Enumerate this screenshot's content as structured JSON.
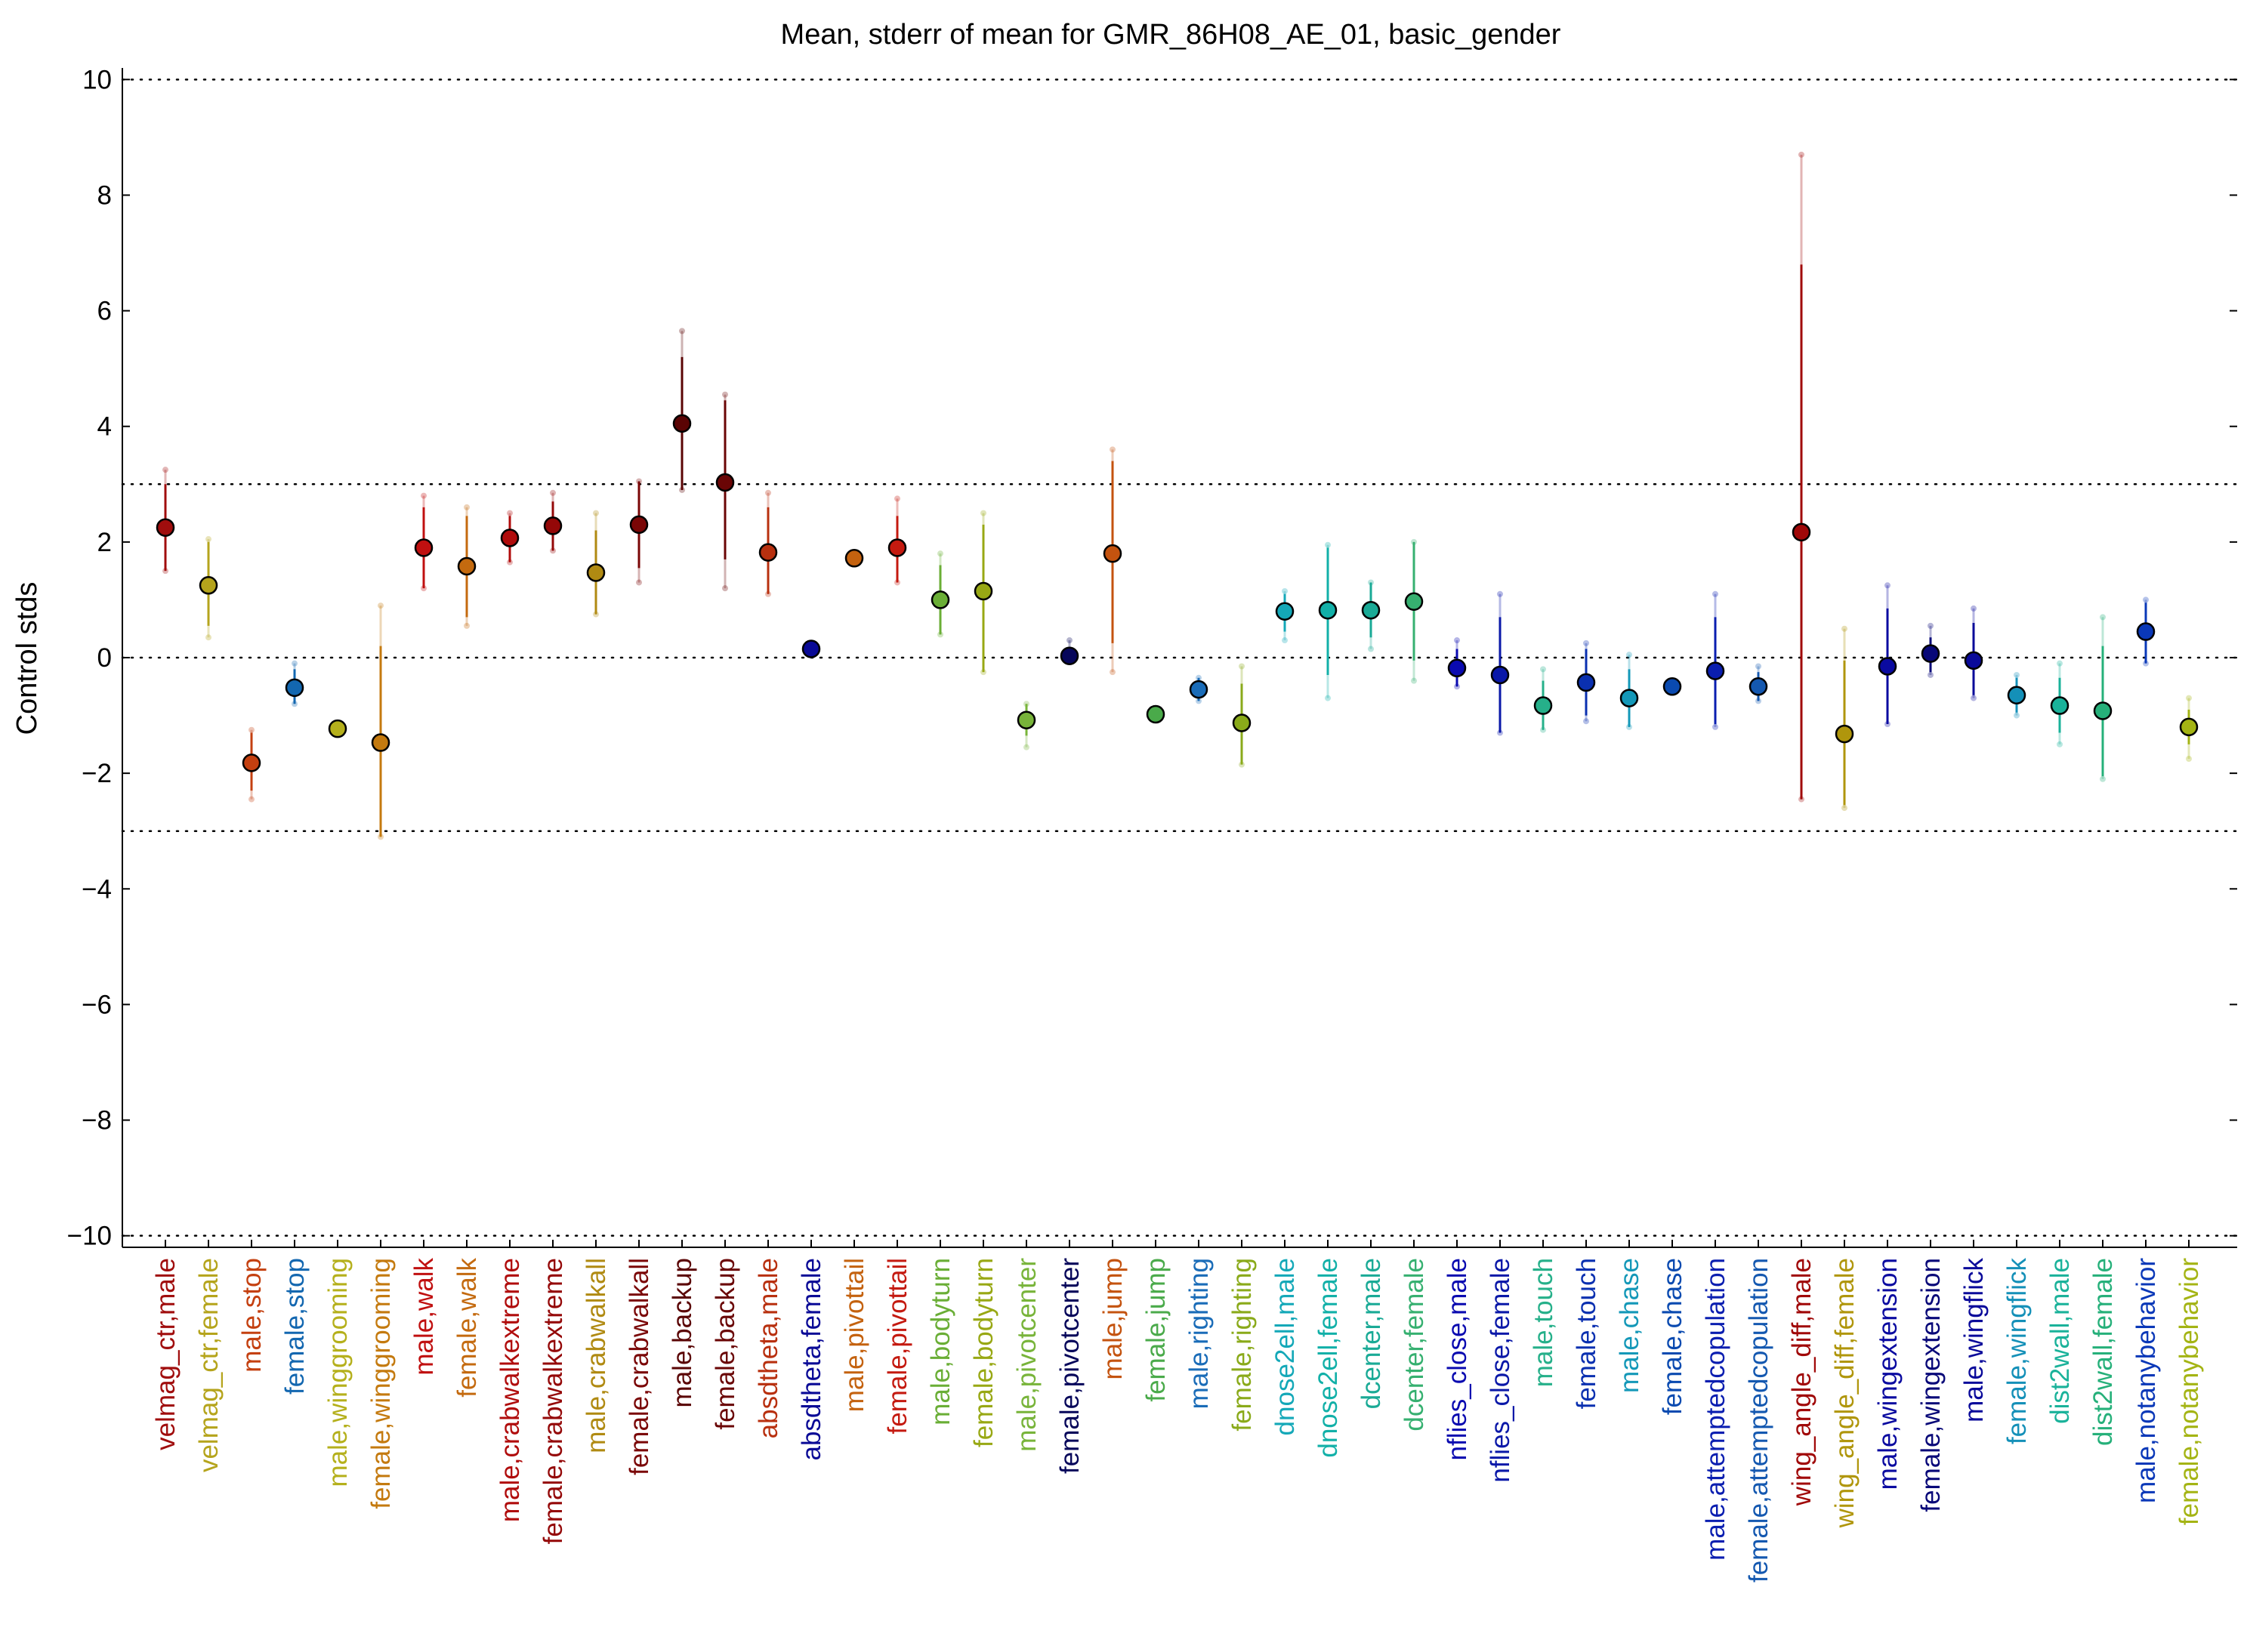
{
  "chart_data": {
    "type": "scatter",
    "title": "Mean, stderr of mean for GMR_86H08_AE_01, basic_gender",
    "ylabel": "Control stds",
    "xlabel": "",
    "ylim": [
      -10.2,
      10.2
    ],
    "yticks": [
      10,
      8,
      6,
      4,
      2,
      0,
      -2,
      -4,
      -6,
      -8,
      -10
    ],
    "reference_lines": [
      10,
      3,
      0,
      -3,
      -10
    ],
    "grid": false,
    "points": [
      {
        "label": "velmag_ctr,male",
        "mean": 2.25,
        "err_low": 1.5,
        "err_high": 3.0,
        "ext_low": 1.5,
        "ext_high": 3.25,
        "color": "#a00d0d"
      },
      {
        "label": "velmag_ctr,female",
        "mean": 1.25,
        "err_low": 0.55,
        "err_high": 2.0,
        "ext_low": 0.35,
        "ext_high": 2.05,
        "color": "#b5a41c"
      },
      {
        "label": "male,stop",
        "mean": -1.82,
        "err_low": -2.3,
        "err_high": -1.3,
        "ext_low": -2.45,
        "ext_high": -1.25,
        "color": "#c44010"
      },
      {
        "label": "female,stop",
        "mean": -0.52,
        "err_low": -0.8,
        "err_high": -0.2,
        "ext_low": -0.8,
        "ext_high": -0.1,
        "color": "#1367b0"
      },
      {
        "label": "male,winggrooming",
        "mean": -1.23,
        "err_low": -1.25,
        "err_high": -1.2,
        "ext_low": -1.25,
        "ext_high": -1.2,
        "color": "#b5b01c"
      },
      {
        "label": "female,winggrooming",
        "mean": -1.47,
        "err_low": -3.1,
        "err_high": 0.2,
        "ext_low": -3.1,
        "ext_high": 0.9,
        "color": "#c47a0f"
      },
      {
        "label": "male,walk",
        "mean": 1.9,
        "err_low": 1.2,
        "err_high": 2.6,
        "ext_low": 1.2,
        "ext_high": 2.8,
        "color": "#c01010"
      },
      {
        "label": "female,walk",
        "mean": 1.58,
        "err_low": 0.7,
        "err_high": 2.45,
        "ext_low": 0.55,
        "ext_high": 2.6,
        "color": "#c46a0f"
      },
      {
        "label": "male,crabwalkextreme",
        "mean": 2.07,
        "err_low": 1.65,
        "err_high": 2.45,
        "ext_low": 1.65,
        "ext_high": 2.5,
        "color": "#b00c0c"
      },
      {
        "label": "female,crabwalkextreme",
        "mean": 2.28,
        "err_low": 1.85,
        "err_high": 2.7,
        "ext_low": 1.85,
        "ext_high": 2.85,
        "color": "#940808"
      },
      {
        "label": "male,crabwalkall",
        "mean": 1.47,
        "err_low": 0.75,
        "err_high": 2.2,
        "ext_low": 0.75,
        "ext_high": 2.5,
        "color": "#b08a12"
      },
      {
        "label": "female,crabwalkall",
        "mean": 2.3,
        "err_low": 1.55,
        "err_high": 3.05,
        "ext_low": 1.3,
        "ext_high": 3.05,
        "color": "#7a0606"
      },
      {
        "label": "male,backup",
        "mean": 4.05,
        "err_low": 2.9,
        "err_high": 5.2,
        "ext_low": 2.9,
        "ext_high": 5.65,
        "color": "#5a0404"
      },
      {
        "label": "female,backup",
        "mean": 3.03,
        "err_low": 1.7,
        "err_high": 4.45,
        "ext_low": 1.2,
        "ext_high": 4.55,
        "color": "#6a0505"
      },
      {
        "label": "absdtheta,male",
        "mean": 1.82,
        "err_low": 1.1,
        "err_high": 2.6,
        "ext_low": 1.1,
        "ext_high": 2.85,
        "color": "#b8300f"
      },
      {
        "label": "absdtheta,female",
        "mean": 0.15,
        "err_low": 0.1,
        "err_high": 0.2,
        "ext_low": 0.1,
        "ext_high": 0.2,
        "color": "#0a0a96"
      },
      {
        "label": "male,pivottail",
        "mean": 1.72,
        "err_low": 1.7,
        "err_high": 1.75,
        "ext_low": 1.7,
        "ext_high": 1.75,
        "color": "#c4620f"
      },
      {
        "label": "female,pivottail",
        "mean": 1.9,
        "err_low": 1.3,
        "err_high": 2.45,
        "ext_low": 1.3,
        "ext_high": 2.75,
        "color": "#c41a10"
      },
      {
        "label": "male,bodyturn",
        "mean": 1.0,
        "err_low": 0.4,
        "err_high": 1.6,
        "ext_low": 0.4,
        "ext_high": 1.8,
        "color": "#6aae36"
      },
      {
        "label": "female,bodyturn",
        "mean": 1.15,
        "err_low": -0.25,
        "err_high": 2.3,
        "ext_low": -0.25,
        "ext_high": 2.5,
        "color": "#98a814"
      },
      {
        "label": "male,pivotcenter",
        "mean": -1.08,
        "err_low": -1.35,
        "err_high": -0.8,
        "ext_low": -1.55,
        "ext_high": -0.8,
        "color": "#78b43a"
      },
      {
        "label": "female,pivotcenter",
        "mean": 0.03,
        "err_low": -0.05,
        "err_high": 0.15,
        "ext_low": -0.05,
        "ext_high": 0.3,
        "color": "#06065a"
      },
      {
        "label": "male,jump",
        "mean": 1.8,
        "err_low": 0.25,
        "err_high": 3.4,
        "ext_low": -0.25,
        "ext_high": 3.6,
        "color": "#c4530f"
      },
      {
        "label": "female,jump",
        "mean": -0.98,
        "err_low": -1.0,
        "err_high": -0.95,
        "ext_low": -1.0,
        "ext_high": -0.95,
        "color": "#4aaa4a"
      },
      {
        "label": "male,righting",
        "mean": -0.55,
        "err_low": -0.75,
        "err_high": -0.35,
        "ext_low": -0.75,
        "ext_high": -0.35,
        "color": "#1a6cb8"
      },
      {
        "label": "female,righting",
        "mean": -1.13,
        "err_low": -1.85,
        "err_high": -0.45,
        "ext_low": -1.85,
        "ext_high": -0.15,
        "color": "#8aaa1a"
      },
      {
        "label": "dnose2ell,male",
        "mean": 0.8,
        "err_low": 0.45,
        "err_high": 1.1,
        "ext_low": 0.3,
        "ext_high": 1.15,
        "color": "#14a8b8"
      },
      {
        "label": "dnose2ell,female",
        "mean": 0.82,
        "err_low": -0.3,
        "err_high": 1.9,
        "ext_low": -0.7,
        "ext_high": 1.95,
        "color": "#12b0a8"
      },
      {
        "label": "dcenter,male",
        "mean": 0.82,
        "err_low": 0.35,
        "err_high": 1.3,
        "ext_low": 0.15,
        "ext_high": 1.3,
        "color": "#1aaa96"
      },
      {
        "label": "dcenter,female",
        "mean": 0.97,
        "err_low": -0.05,
        "err_high": 2.0,
        "ext_low": -0.4,
        "ext_high": 2.0,
        "color": "#36b070"
      },
      {
        "label": "nflies_close,male",
        "mean": -0.18,
        "err_low": -0.5,
        "err_high": 0.15,
        "ext_low": -0.5,
        "ext_high": 0.3,
        "color": "#0a0ab0"
      },
      {
        "label": "nflies_close,female",
        "mean": -0.3,
        "err_low": -1.3,
        "err_high": 0.7,
        "ext_low": -1.3,
        "ext_high": 1.1,
        "color": "#0a18a8"
      },
      {
        "label": "male,touch",
        "mean": -0.83,
        "err_low": -1.25,
        "err_high": -0.4,
        "ext_low": -1.25,
        "ext_high": -0.2,
        "color": "#26b08a"
      },
      {
        "label": "female,touch",
        "mean": -0.43,
        "err_low": -1.0,
        "err_high": 0.15,
        "ext_low": -1.1,
        "ext_high": 0.25,
        "color": "#0a30b0"
      },
      {
        "label": "male,chase",
        "mean": -0.7,
        "err_low": -1.2,
        "err_high": -0.2,
        "ext_low": -1.2,
        "ext_high": 0.05,
        "color": "#1498b8"
      },
      {
        "label": "female,chase",
        "mean": -0.5,
        "err_low": -0.52,
        "err_high": -0.48,
        "ext_low": -0.52,
        "ext_high": -0.48,
        "color": "#0a4ab0"
      },
      {
        "label": "male,attemptedcopulation",
        "mean": -0.23,
        "err_low": -1.15,
        "err_high": 0.7,
        "ext_low": -1.2,
        "ext_high": 1.1,
        "color": "#0a1eb0"
      },
      {
        "label": "female,attemptedcopulation",
        "mean": -0.5,
        "err_low": -0.75,
        "err_high": -0.25,
        "ext_low": -0.75,
        "ext_high": -0.15,
        "color": "#1458b0"
      },
      {
        "label": "wing_angle_diff,male",
        "mean": 2.17,
        "err_low": -2.45,
        "err_high": 6.8,
        "ext_low": -2.45,
        "ext_high": 8.7,
        "color": "#a00808"
      },
      {
        "label": "wing_angle_diff,female",
        "mean": -1.32,
        "err_low": -2.55,
        "err_high": -0.05,
        "ext_low": -2.6,
        "ext_high": 0.5,
        "color": "#b0960c"
      },
      {
        "label": "male,wingextension",
        "mean": -0.15,
        "err_low": -1.15,
        "err_high": 0.85,
        "ext_low": -1.15,
        "ext_high": 1.25,
        "color": "#0a0aa0"
      },
      {
        "label": "female,wingextension",
        "mean": 0.07,
        "err_low": -0.25,
        "err_high": 0.35,
        "ext_low": -0.3,
        "ext_high": 0.55,
        "color": "#080878"
      },
      {
        "label": "male,wingflick",
        "mean": -0.05,
        "err_low": -0.65,
        "err_high": 0.6,
        "ext_low": -0.7,
        "ext_high": 0.85,
        "color": "#0a0a9a"
      },
      {
        "label": "female,wingflick",
        "mean": -0.65,
        "err_low": -0.95,
        "err_high": -0.35,
        "ext_low": -1.0,
        "ext_high": -0.3,
        "color": "#1490b8"
      },
      {
        "label": "dist2wall,male",
        "mean": -0.83,
        "err_low": -1.3,
        "err_high": -0.35,
        "ext_low": -1.5,
        "ext_high": -0.1,
        "color": "#1ab29a"
      },
      {
        "label": "dist2wall,female",
        "mean": -0.92,
        "err_low": -2.05,
        "err_high": 0.2,
        "ext_low": -2.1,
        "ext_high": 0.7,
        "color": "#26b07a"
      },
      {
        "label": "male,notanybehavior",
        "mean": 0.45,
        "err_low": -0.1,
        "err_high": 0.95,
        "ext_low": -0.1,
        "ext_high": 1.0,
        "color": "#0a38b8"
      },
      {
        "label": "female,notanybehavior",
        "mean": -1.2,
        "err_low": -1.5,
        "err_high": -0.9,
        "ext_low": -1.75,
        "ext_high": -0.7,
        "color": "#a4b414"
      }
    ]
  }
}
